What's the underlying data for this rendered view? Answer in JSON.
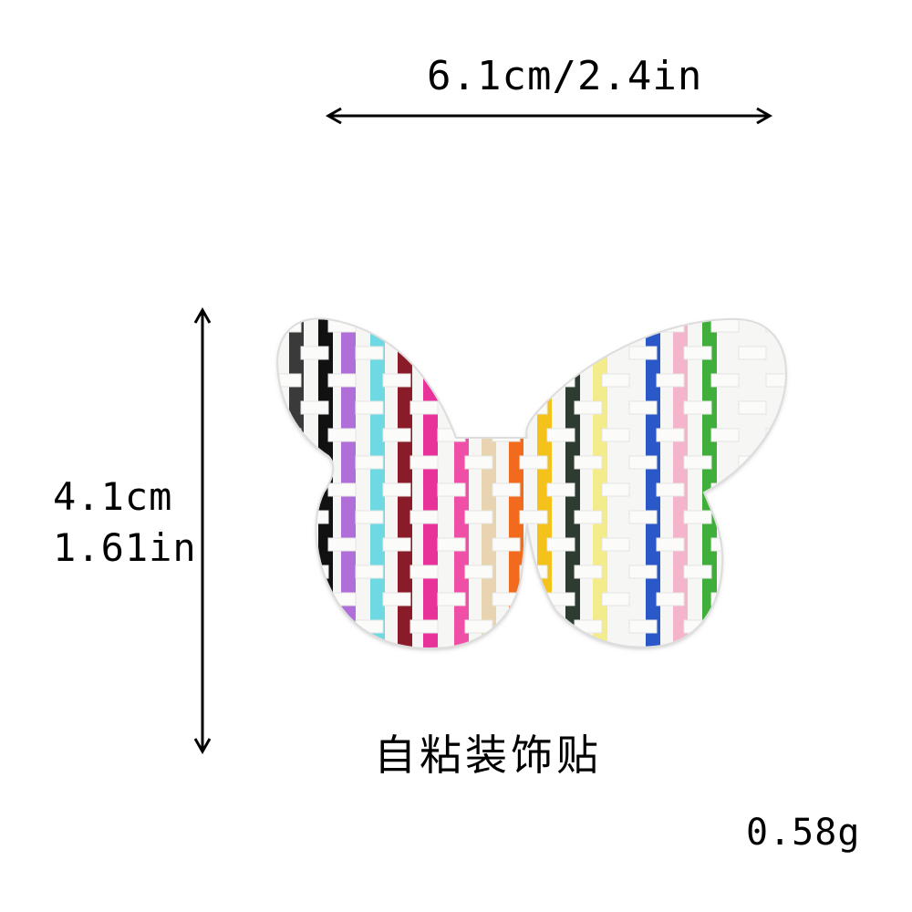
{
  "dimensions": {
    "width_label": "6.1cm/2.4in",
    "height_label_cm": "4.1cm",
    "height_label_in": "1.61in"
  },
  "product": {
    "caption": "自粘装饰贴",
    "weight": "0.58g",
    "image_icon": "butterfly-sticker-icon",
    "weave_colors": [
      "#3a3a3a",
      "#111111",
      "#b06fd8",
      "#6fd9e3",
      "#8a1c2a",
      "#e8329a",
      "#f04fa8",
      "#e8d4b0",
      "#f26a1e",
      "#f4c21a",
      "#2e3b30",
      "#f4ec8a",
      "#2a58c8",
      "#f4b4cc",
      "#3fae3a"
    ]
  }
}
